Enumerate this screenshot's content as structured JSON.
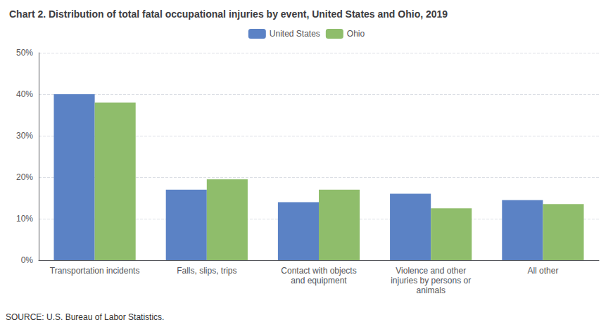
{
  "chart_data": {
    "type": "bar",
    "title": "Chart 2. Distribution of total fatal occupational injuries by event, United States and Ohio, 2019",
    "annotations": [
      "SOURCE: U.S. Bureau of Labor Statistics."
    ],
    "categories": [
      "Transportation incidents",
      "Falls, slips, trips",
      "Contact with objects\nand equipment",
      "Violence and other\ninjuries by persons or\nanimals",
      "All other"
    ],
    "series": [
      {
        "name": "United States",
        "color": "#5B82C5",
        "values": [
          40,
          17,
          14,
          16,
          14.5
        ]
      },
      {
        "name": "Ohio",
        "color": "#8FBD6B",
        "values": [
          38,
          19.5,
          17,
          12.5,
          13.5
        ]
      }
    ],
    "ylim": [
      0,
      50
    ],
    "yticks": [
      {
        "value": 0,
        "label": "0%"
      },
      {
        "value": 10,
        "label": "10%"
      },
      {
        "value": 20,
        "label": "20%"
      },
      {
        "value": 30,
        "label": "30%"
      },
      {
        "value": 40,
        "label": "40%"
      },
      {
        "value": 50,
        "label": "50%"
      }
    ],
    "grid": true,
    "legend": "top"
  }
}
